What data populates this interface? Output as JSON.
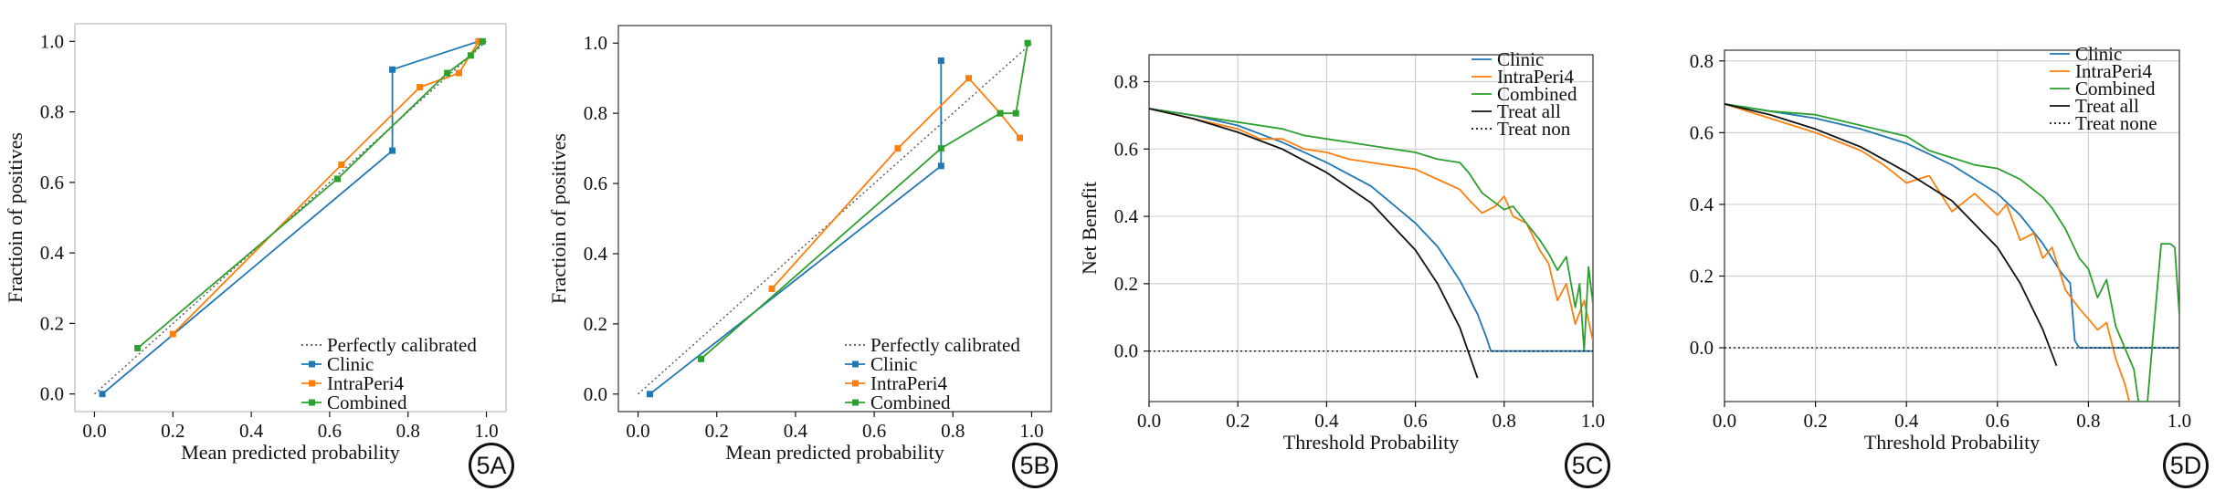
{
  "colors": {
    "clinic": "#1f77b4",
    "intra": "#ff7f0e",
    "combined": "#2ca02c",
    "ref": "#555555",
    "treat_all": "#111111",
    "grid": "#d0d0d0"
  },
  "panels": [
    {
      "label": "5A"
    },
    {
      "label": "5B"
    },
    {
      "label": "5C"
    },
    {
      "label": "5D"
    }
  ],
  "chart_data": [
    {
      "type": "line",
      "panel": "5A",
      "title": "",
      "xlabel": "Mean predicted probability",
      "ylabel": "Fractioin of positives",
      "xlim": [
        -0.05,
        1.05
      ],
      "ylim": [
        -0.05,
        1.05
      ],
      "xticks": [
        "0.0",
        "0.2",
        "0.4",
        "0.6",
        "0.8",
        "1.0"
      ],
      "yticks": [
        "0.0",
        "0.2",
        "0.4",
        "0.6",
        "0.8",
        "1.0"
      ],
      "grid": false,
      "legend_position": "bottom-right",
      "series": [
        {
          "name": "Perfectly calibrated",
          "style": "dotted",
          "x": [
            0,
            1
          ],
          "y": [
            0,
            1
          ]
        },
        {
          "name": "Clinic",
          "marker": "square",
          "x": [
            0.02,
            0.76,
            0.76,
            0.98
          ],
          "y": [
            0.0,
            0.69,
            0.92,
            1.0
          ]
        },
        {
          "name": "IntraPeri4",
          "marker": "square",
          "x": [
            0.2,
            0.63,
            0.83,
            0.93,
            0.98
          ],
          "y": [
            0.17,
            0.65,
            0.87,
            0.91,
            1.0
          ]
        },
        {
          "name": "Combined",
          "marker": "square",
          "x": [
            0.11,
            0.62,
            0.9,
            0.96,
            0.99
          ],
          "y": [
            0.13,
            0.61,
            0.91,
            0.96,
            1.0
          ]
        }
      ]
    },
    {
      "type": "line",
      "panel": "5B",
      "title": "",
      "xlabel": "Mean predicted probability",
      "ylabel": "Fractioin of positives",
      "xlim": [
        -0.05,
        1.05
      ],
      "ylim": [
        -0.05,
        1.05
      ],
      "xticks": [
        "0.0",
        "0.2",
        "0.4",
        "0.6",
        "0.8",
        "1.0"
      ],
      "yticks": [
        "0.0",
        "0.2",
        "0.4",
        "0.6",
        "0.8",
        "1.0"
      ],
      "grid": false,
      "legend_position": "bottom-right",
      "series": [
        {
          "name": "Perfectly calibrated",
          "style": "dotted",
          "x": [
            0,
            1
          ],
          "y": [
            0,
            1
          ]
        },
        {
          "name": "Clinic",
          "marker": "square",
          "x": [
            0.03,
            0.77,
            0.77
          ],
          "y": [
            0.0,
            0.65,
            0.95
          ]
        },
        {
          "name": "IntraPeri4",
          "marker": "square",
          "x": [
            0.34,
            0.66,
            0.84,
            0.92,
            0.97
          ],
          "y": [
            0.3,
            0.7,
            0.9,
            0.8,
            0.73
          ]
        },
        {
          "name": "Combined",
          "marker": "square",
          "x": [
            0.16,
            0.77,
            0.92,
            0.96,
            0.99
          ],
          "y": [
            0.1,
            0.7,
            0.8,
            0.8,
            1.0
          ]
        }
      ]
    },
    {
      "type": "line",
      "panel": "5C",
      "title": "",
      "xlabel": "Threshold Probability",
      "ylabel": "Net Benefit",
      "xlim": [
        0,
        1
      ],
      "ylim": [
        -0.15,
        0.88
      ],
      "xticks": [
        "0.0",
        "0.2",
        "0.4",
        "0.6",
        "0.8",
        "1.0"
      ],
      "yticks": [
        "0.0",
        "0.2",
        "0.4",
        "0.6",
        "0.8"
      ],
      "grid": true,
      "legend_position": "top-right",
      "series": [
        {
          "name": "Clinic",
          "x": [
            0,
            0.1,
            0.2,
            0.3,
            0.4,
            0.5,
            0.6,
            0.65,
            0.7,
            0.74,
            0.76,
            0.77,
            1.0
          ],
          "y": [
            0.72,
            0.7,
            0.67,
            0.62,
            0.56,
            0.49,
            0.38,
            0.31,
            0.21,
            0.11,
            0.04,
            0.0,
            0.0
          ]
        },
        {
          "name": "IntraPeri4",
          "x": [
            0,
            0.1,
            0.2,
            0.25,
            0.3,
            0.35,
            0.4,
            0.45,
            0.5,
            0.55,
            0.6,
            0.65,
            0.7,
            0.72,
            0.75,
            0.78,
            0.8,
            0.82,
            0.85,
            0.88,
            0.9,
            0.92,
            0.94,
            0.96,
            0.98,
            1.0
          ],
          "y": [
            0.72,
            0.69,
            0.66,
            0.63,
            0.63,
            0.6,
            0.59,
            0.57,
            0.56,
            0.55,
            0.54,
            0.51,
            0.48,
            0.45,
            0.41,
            0.43,
            0.46,
            0.4,
            0.38,
            0.3,
            0.26,
            0.15,
            0.2,
            0.08,
            0.15,
            0.03
          ]
        },
        {
          "name": "Combined",
          "x": [
            0,
            0.1,
            0.2,
            0.25,
            0.3,
            0.35,
            0.4,
            0.45,
            0.5,
            0.55,
            0.6,
            0.65,
            0.7,
            0.72,
            0.75,
            0.78,
            0.8,
            0.82,
            0.85,
            0.88,
            0.9,
            0.92,
            0.94,
            0.96,
            0.97,
            0.98,
            0.99,
            1.0
          ],
          "y": [
            0.72,
            0.7,
            0.68,
            0.67,
            0.66,
            0.64,
            0.63,
            0.62,
            0.61,
            0.6,
            0.59,
            0.57,
            0.56,
            0.53,
            0.47,
            0.44,
            0.42,
            0.43,
            0.38,
            0.33,
            0.29,
            0.24,
            0.28,
            0.13,
            0.2,
            0.0,
            0.25,
            0.14
          ]
        },
        {
          "name": "Treat all",
          "x": [
            0,
            0.1,
            0.2,
            0.3,
            0.4,
            0.5,
            0.6,
            0.65,
            0.7,
            0.74
          ],
          "y": [
            0.72,
            0.69,
            0.65,
            0.6,
            0.53,
            0.44,
            0.3,
            0.2,
            0.07,
            -0.08
          ]
        },
        {
          "name": "Treat non",
          "style": "dotted",
          "x": [
            0,
            1
          ],
          "y": [
            0,
            0
          ]
        }
      ]
    },
    {
      "type": "line",
      "panel": "5D",
      "title": "",
      "xlabel": "Threshold Probability",
      "ylabel": "",
      "xlim": [
        0,
        1
      ],
      "ylim": [
        -0.15,
        0.83
      ],
      "xticks": [
        "0.0",
        "0.2",
        "0.4",
        "0.6",
        "0.8",
        "1.0"
      ],
      "yticks": [
        "0.0",
        "0.2",
        "0.4",
        "0.6",
        "0.8"
      ],
      "grid": true,
      "legend_position": "top-right",
      "series": [
        {
          "name": "Clinic",
          "x": [
            0,
            0.1,
            0.2,
            0.3,
            0.4,
            0.5,
            0.6,
            0.65,
            0.7,
            0.74,
            0.76,
            0.77,
            0.78,
            1.0
          ],
          "y": [
            0.68,
            0.66,
            0.64,
            0.61,
            0.57,
            0.51,
            0.43,
            0.37,
            0.29,
            0.21,
            0.18,
            0.02,
            0.0,
            0.0
          ]
        },
        {
          "name": "IntraPeri4",
          "x": [
            0,
            0.1,
            0.2,
            0.3,
            0.35,
            0.4,
            0.45,
            0.5,
            0.55,
            0.6,
            0.62,
            0.65,
            0.68,
            0.7,
            0.72,
            0.75,
            0.78,
            0.8,
            0.82,
            0.84,
            0.86,
            0.88,
            0.89
          ],
          "y": [
            0.68,
            0.64,
            0.6,
            0.55,
            0.51,
            0.46,
            0.48,
            0.38,
            0.43,
            0.37,
            0.4,
            0.3,
            0.32,
            0.25,
            0.28,
            0.16,
            0.11,
            0.08,
            0.05,
            0.07,
            -0.03,
            -0.1,
            -0.15
          ]
        },
        {
          "name": "Combined",
          "x": [
            0,
            0.1,
            0.2,
            0.3,
            0.4,
            0.45,
            0.5,
            0.55,
            0.6,
            0.65,
            0.7,
            0.72,
            0.75,
            0.78,
            0.8,
            0.82,
            0.84,
            0.86,
            0.88,
            0.9,
            0.91,
            0.93,
            0.94,
            0.96,
            0.98,
            0.99,
            1.0
          ],
          "y": [
            0.68,
            0.66,
            0.65,
            0.62,
            0.59,
            0.55,
            0.53,
            0.51,
            0.5,
            0.47,
            0.42,
            0.39,
            0.33,
            0.25,
            0.22,
            0.14,
            0.19,
            0.06,
            0.0,
            -0.06,
            -0.15,
            -0.15,
            0.0,
            0.29,
            0.29,
            0.28,
            0.09
          ]
        },
        {
          "name": "Treat all",
          "x": [
            0,
            0.1,
            0.2,
            0.3,
            0.4,
            0.5,
            0.6,
            0.65,
            0.7,
            0.73
          ],
          "y": [
            0.68,
            0.65,
            0.61,
            0.56,
            0.49,
            0.41,
            0.28,
            0.18,
            0.05,
            -0.05
          ]
        },
        {
          "name": "Treat none",
          "style": "dotted",
          "x": [
            0,
            1
          ],
          "y": [
            0,
            0
          ]
        }
      ]
    }
  ]
}
